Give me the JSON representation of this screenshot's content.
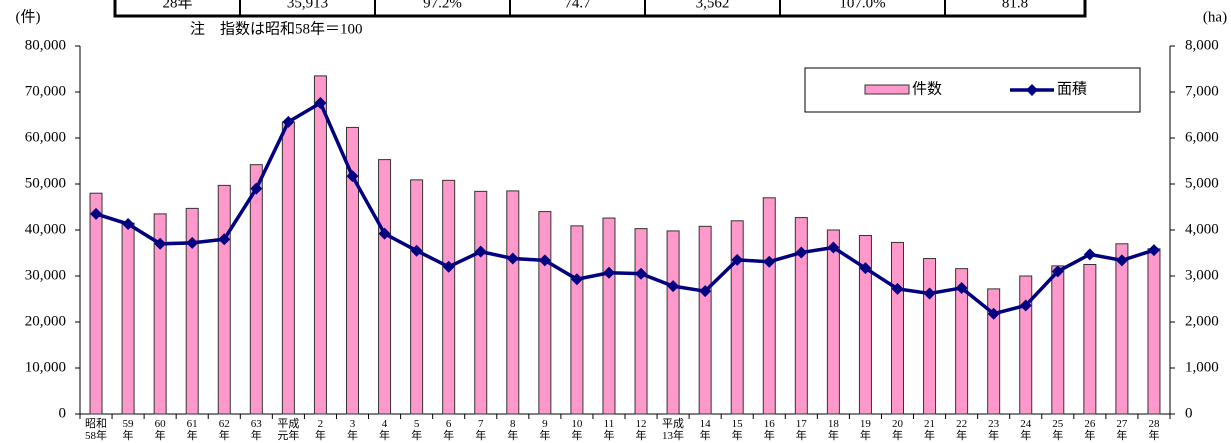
{
  "table_row": [
    "28年",
    "35,913",
    "97.2%",
    "74.7",
    "3,562",
    "107.0%",
    "81.8"
  ],
  "note": "注　指数は昭和58年＝100",
  "chart_data": {
    "type": "bar_line",
    "y_unit": "(件)",
    "y2_unit": "(ha)",
    "categories": [
      "昭和\n58年",
      "59\n年",
      "60\n年",
      "61\n年",
      "62\n年",
      "63\n年",
      "平成\n元年",
      "2\n年",
      "3\n年",
      "4\n年",
      "5\n年",
      "6\n年",
      "7\n年",
      "8\n年",
      "9\n年",
      "10\n年",
      "11\n年",
      "12\n年",
      "平成\n13年",
      "14\n年",
      "15\n年",
      "16\n年",
      "17\n年",
      "18\n年",
      "19\n年",
      "20\n年",
      "21\n年",
      "22\n年",
      "23\n年",
      "24\n年",
      "25\n年",
      "26\n年",
      "27\n年",
      "28\n年"
    ],
    "series": [
      {
        "name": "件数",
        "type": "bar",
        "color": "#ff99cc",
        "values": [
          48000,
          41500,
          43500,
          44700,
          49700,
          54200,
          63500,
          73500,
          62300,
          55300,
          50900,
          50800,
          48400,
          48500,
          44000,
          40900,
          42600,
          40300,
          39800,
          40800,
          42000,
          47000,
          42700,
          40000,
          38800,
          37300,
          33800,
          31600,
          27200,
          30000,
          32200,
          32500,
          37000,
          35913
        ]
      },
      {
        "name": "面積",
        "type": "line",
        "axis": "y2",
        "color": "#000080",
        "values": [
          4350,
          4130,
          3700,
          3720,
          3800,
          4900,
          6350,
          6760,
          5170,
          3920,
          3550,
          3200,
          3530,
          3380,
          3340,
          2930,
          3070,
          3050,
          2780,
          2670,
          3350,
          3310,
          3510,
          3620,
          3170,
          2720,
          2620,
          2740,
          2180,
          2360,
          3100,
          3470,
          3340,
          3562
        ]
      }
    ],
    "ylim": [
      0,
      80000
    ],
    "yticks": [
      0,
      {
        "value": 10000,
        "label": "10,000"
      },
      {
        "value": 20000,
        "label": "20,000"
      },
      {
        "value": 30000,
        "label": "30,000"
      },
      {
        "value": 40000,
        "label": "40,000"
      },
      {
        "value": 50000,
        "label": "50,000"
      },
      {
        "value": 60000,
        "label": "60,000"
      },
      {
        "value": 70000,
        "label": "70,000"
      },
      {
        "value": 80000,
        "label": "80,000"
      }
    ],
    "y2lim": [
      0,
      8000
    ],
    "y2ticks": [
      0,
      {
        "value": 1000,
        "label": "1,000"
      },
      {
        "value": 2000,
        "label": "2,000"
      },
      {
        "value": 3000,
        "label": "3,000"
      },
      {
        "value": 4000,
        "label": "4,000"
      },
      {
        "value": 5000,
        "label": "5,000"
      },
      {
        "value": 6000,
        "label": "6,000"
      },
      {
        "value": 7000,
        "label": "7,000"
      },
      {
        "value": 8000,
        "label": "8,000"
      }
    ],
    "legend": "top-right"
  }
}
